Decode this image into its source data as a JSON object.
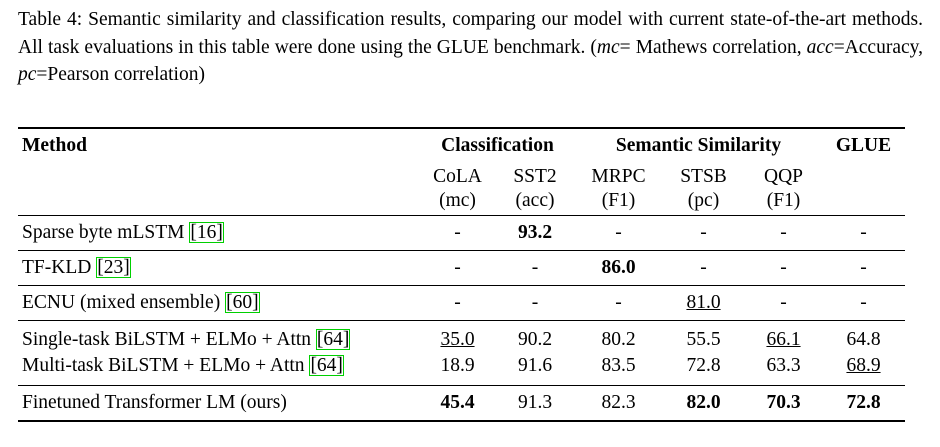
{
  "caption": {
    "parts": [
      {
        "text": "Table 4: Semantic similarity and classification results, comparing our model with current state-of-the-art methods. All task evaluations in this table were done using the GLUE benchmark. ("
      },
      {
        "text": "mc",
        "italic": true
      },
      {
        "text": "= Mathews correlation, "
      },
      {
        "text": "acc",
        "italic": true
      },
      {
        "text": "=Accuracy, "
      },
      {
        "text": "pc",
        "italic": true
      },
      {
        "text": "=Pearson correlation)"
      }
    ]
  },
  "table": {
    "header": {
      "method": "Method",
      "classification": "Classification",
      "similarity": "Semantic Similarity",
      "glue": "GLUE"
    },
    "columns": [
      {
        "name": "CoLA",
        "metric": "(mc)"
      },
      {
        "name": "SST2",
        "metric": "(acc)"
      },
      {
        "name": "MRPC",
        "metric": "(F1)"
      },
      {
        "name": "STSB",
        "metric": "(pc)"
      },
      {
        "name": "QQP",
        "metric": "(F1)"
      }
    ],
    "groups": [
      [
        {
          "method": "Sparse byte mLSTM",
          "cite": "[16]",
          "cells": [
            {
              "text": "-"
            },
            {
              "text": "93.2",
              "bold": true
            },
            {
              "text": "-"
            },
            {
              "text": "-"
            },
            {
              "text": "-"
            },
            {
              "text": "-"
            }
          ]
        }
      ],
      [
        {
          "method": "TF-KLD",
          "cite": "[23]",
          "cells": [
            {
              "text": "-"
            },
            {
              "text": "-"
            },
            {
              "text": "86.0",
              "bold": true
            },
            {
              "text": "-"
            },
            {
              "text": "-"
            },
            {
              "text": "-"
            }
          ]
        }
      ],
      [
        {
          "method": "ECNU (mixed ensemble)",
          "cite": "[60]",
          "cells": [
            {
              "text": "-"
            },
            {
              "text": "-"
            },
            {
              "text": "-"
            },
            {
              "text": "81.0",
              "underline": true
            },
            {
              "text": "-"
            },
            {
              "text": "-"
            }
          ]
        }
      ],
      [
        {
          "method": "Single-task BiLSTM + ELMo + Attn",
          "cite": "[64]",
          "cells": [
            {
              "text": "35.0",
              "underline": true
            },
            {
              "text": "90.2"
            },
            {
              "text": "80.2"
            },
            {
              "text": "55.5"
            },
            {
              "text": "66.1",
              "underline": true
            },
            {
              "text": "64.8"
            }
          ]
        },
        {
          "method": "Multi-task BiLSTM + ELMo + Attn",
          "cite": "[64]",
          "cells": [
            {
              "text": "18.9"
            },
            {
              "text": "91.6"
            },
            {
              "text": "83.5"
            },
            {
              "text": "72.8"
            },
            {
              "text": "63.3"
            },
            {
              "text": "68.9",
              "underline": true
            }
          ]
        }
      ],
      [
        {
          "method": "Finetuned Transformer LM (ours)",
          "cells": [
            {
              "text": "45.4",
              "bold": true
            },
            {
              "text": "91.3"
            },
            {
              "text": "82.3"
            },
            {
              "text": "82.0",
              "bold": true
            },
            {
              "text": "70.3",
              "bold": true
            },
            {
              "text": "72.8",
              "bold": true
            }
          ]
        }
      ]
    ]
  }
}
